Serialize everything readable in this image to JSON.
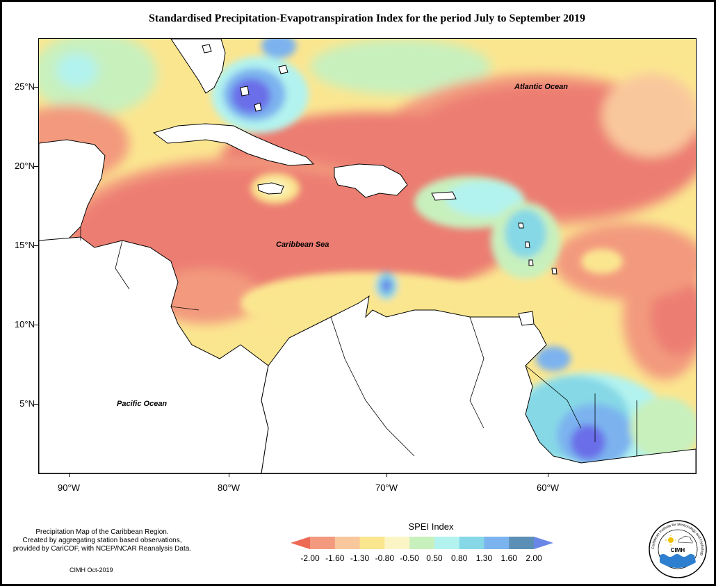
{
  "title": "Standardised Precipitation-Evapotranspiration Index for the period July to September 2019",
  "axes": {
    "lat_labels": [
      "25°N",
      "20°N",
      "15°N",
      "10°N",
      "5°N"
    ],
    "lon_labels": [
      "90°W",
      "80°W",
      "70°W",
      "60°W"
    ]
  },
  "map_labels": {
    "atlantic": "Atlantic Ocean",
    "caribbean": "Caribbean Sea",
    "pacific": "Pacific Ocean"
  },
  "legend": {
    "title": "SPEI Index",
    "ticks": [
      "-2.00",
      "-1.60",
      "-1.30",
      "-0.80",
      "-0.50",
      "0.50",
      "0.80",
      "1.30",
      "1.60",
      "2.00"
    ],
    "colors": [
      "#ec6a56",
      "#f39a7e",
      "#f9c79c",
      "#fbe690",
      "#fbf5c6",
      "#c8f0bd",
      "#b2f3ef",
      "#86d8e6",
      "#7bb3ef",
      "#5b8fb5",
      "#6a87e8"
    ]
  },
  "footer": {
    "line1": "Precipitation Map of the Caribbean Region.",
    "line2": "Created by aggregating station based observations,",
    "line3": "provided by CariCOF, with NCEP/NCAR Reanalysis Data.",
    "credit": "CIMH Oct-2019"
  },
  "logo": {
    "text": "CIMH",
    "ring_text": "Caribbean Institute for Meteorology and Hydrology"
  }
}
